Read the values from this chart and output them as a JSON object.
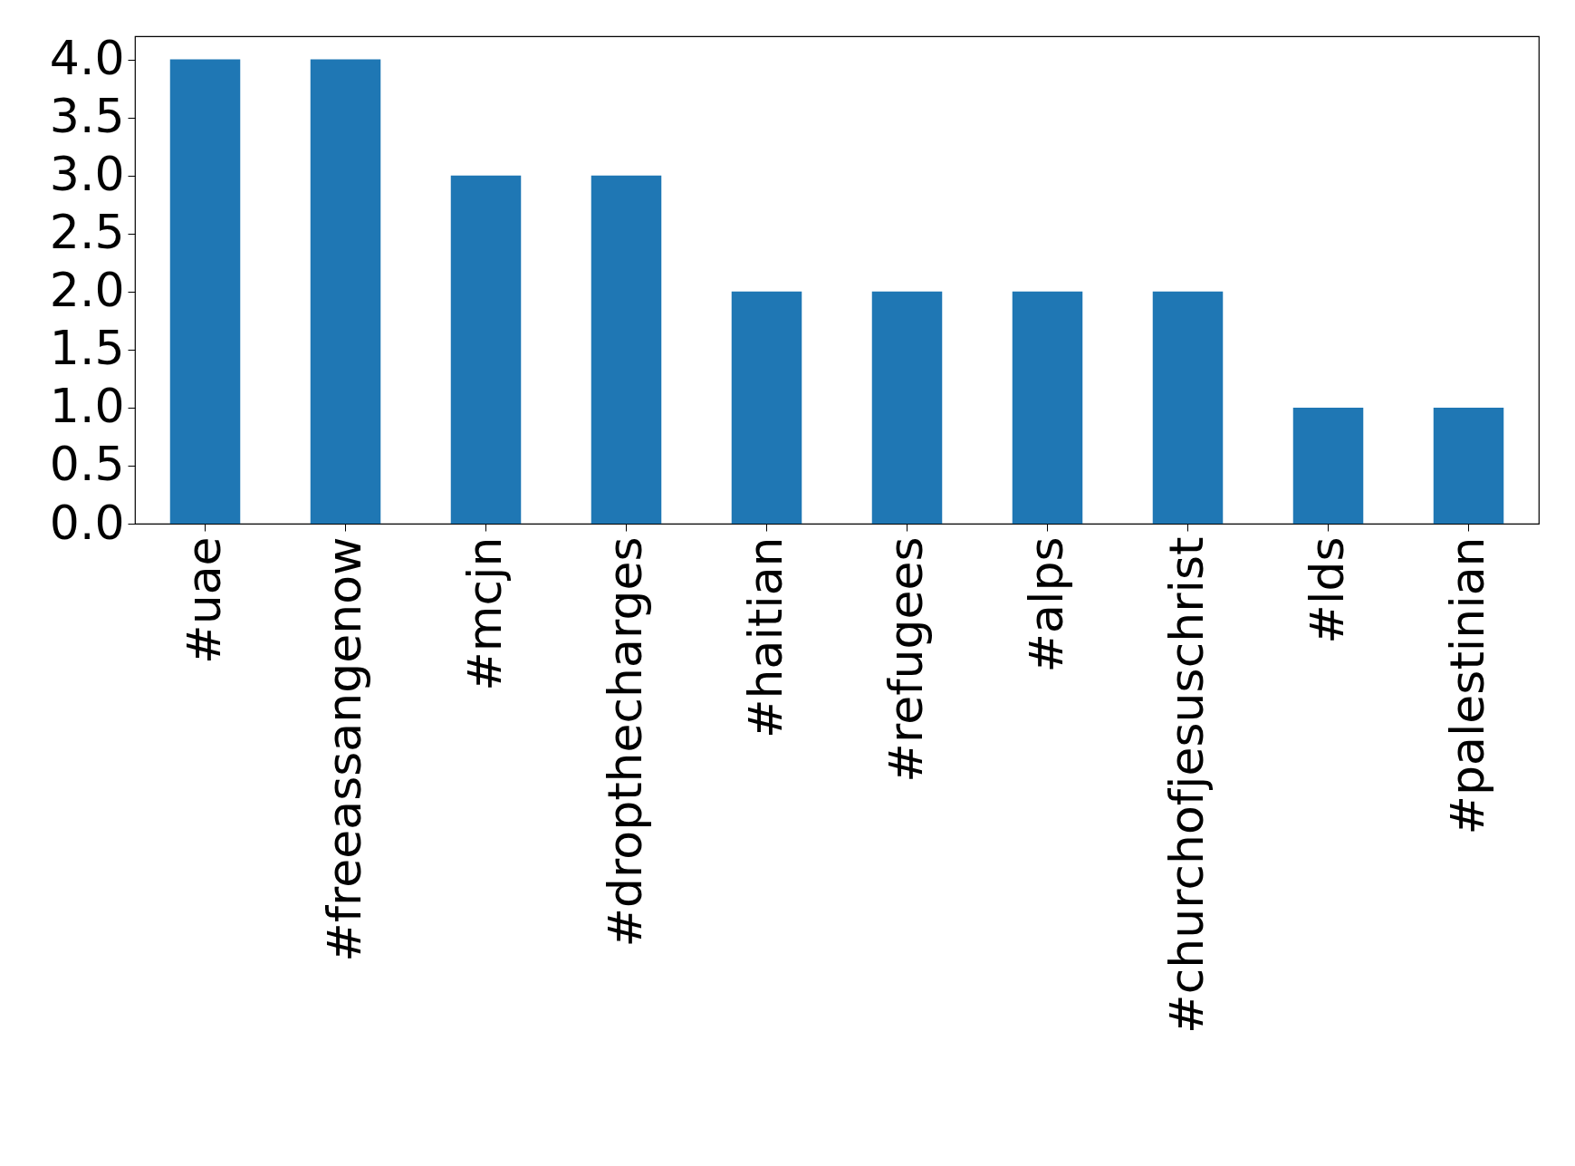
{
  "chart_data": {
    "type": "bar",
    "categories": [
      "#uae",
      "#freeassangenow",
      "#mcjn",
      "#dropthecharges",
      "#haitian",
      "#refugees",
      "#alps",
      "#churchofjesuschrist",
      "#lds",
      "#palestinian"
    ],
    "values": [
      4,
      4,
      3,
      3,
      2,
      2,
      2,
      2,
      1,
      1
    ],
    "color": "#1f77b4",
    "ylim": [
      0,
      4.2
    ],
    "yticks": [
      {
        "value": 0,
        "label": "0.0"
      },
      0.5,
      {
        "value": 1,
        "label": "1.0"
      },
      1.5,
      {
        "value": 2,
        "label": "2.0"
      },
      2.5,
      {
        "value": 3,
        "label": "3.0"
      },
      3.5,
      {
        "value": 4,
        "label": "4.0"
      }
    ],
    "grid": false
  }
}
